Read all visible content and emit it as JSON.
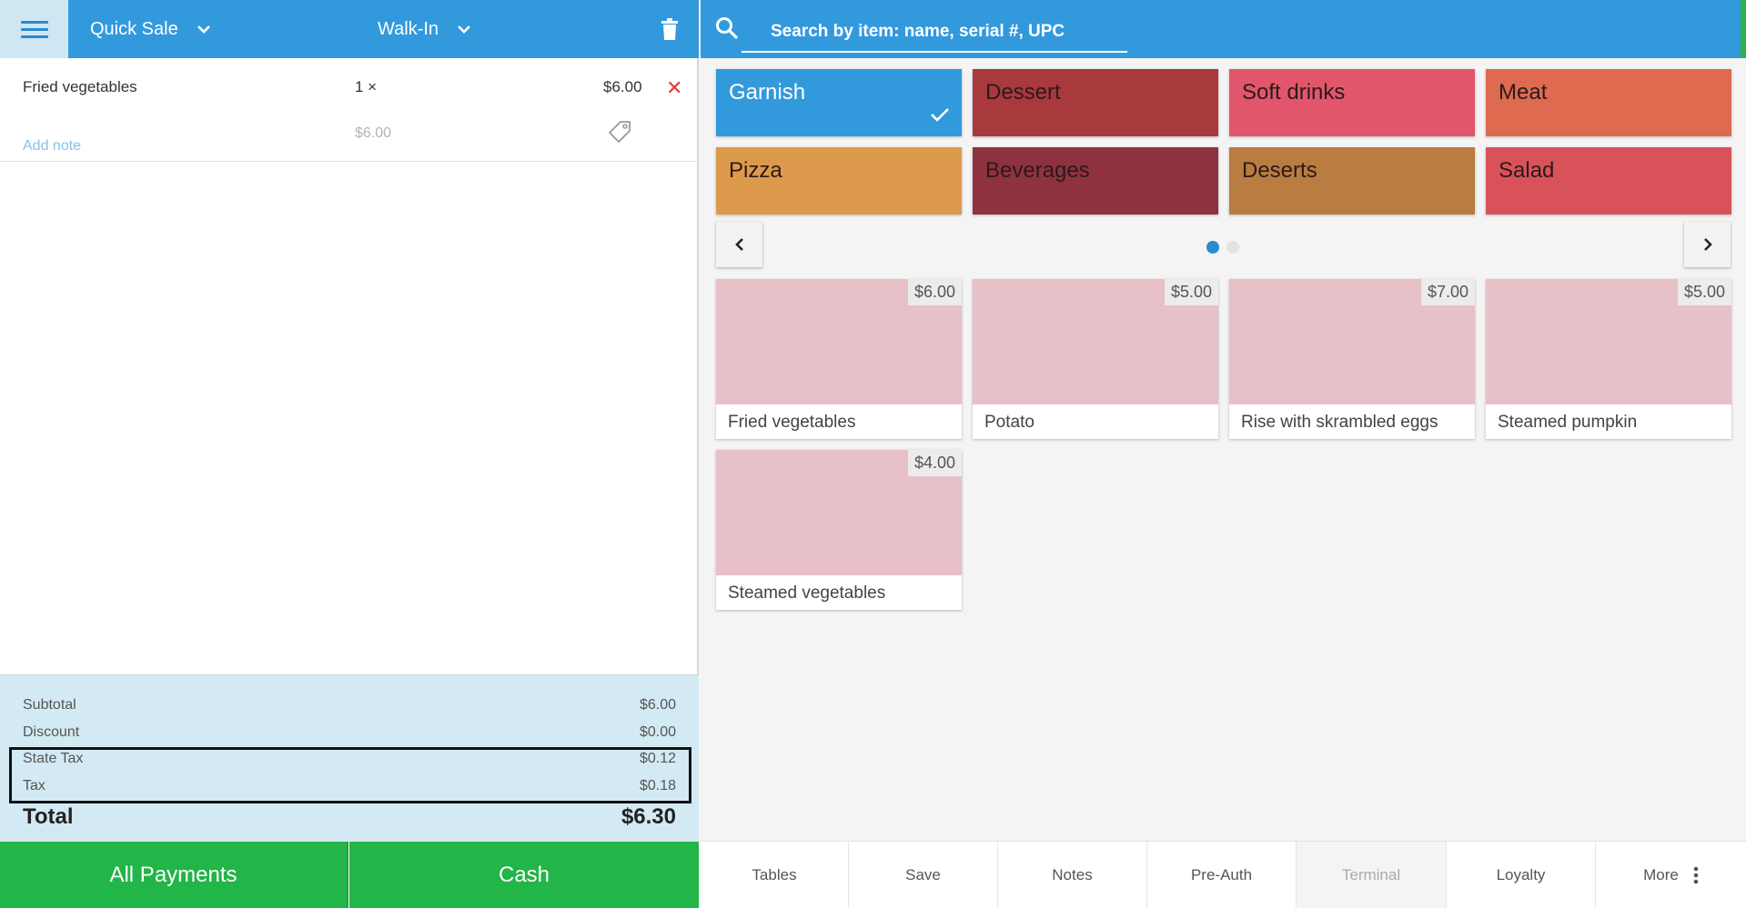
{
  "header": {
    "sale_type": "Quick Sale",
    "customer": "Walk-In"
  },
  "order": {
    "items": [
      {
        "name": "Fried vegetables",
        "qty": "1 ×",
        "price": "$6.00",
        "unit_price": "$6.00",
        "add_note": "Add note"
      }
    ]
  },
  "totals": {
    "subtotal_label": "Subtotal",
    "subtotal": "$6.00",
    "discount_label": "Discount",
    "discount": "$0.00",
    "state_tax_label": "State Tax",
    "state_tax": "$0.12",
    "tax_label": "Tax",
    "tax": "$0.18",
    "total_label": "Total",
    "total": "$6.30"
  },
  "payments": {
    "all": "All Payments",
    "cash": "Cash"
  },
  "search": {
    "placeholder": "Search by item: name, serial #, UPC"
  },
  "categories": [
    {
      "label": "Garnish",
      "color": "#3399dd",
      "selected": true
    },
    {
      "label": "Dessert",
      "color": "#a8393c"
    },
    {
      "label": "Soft drinks",
      "color": "#e2566c"
    },
    {
      "label": "Meat",
      "color": "#de6a4f"
    },
    {
      "label": "Pizza",
      "color": "#dd9a4c"
    },
    {
      "label": "Beverages",
      "color": "#8e3240"
    },
    {
      "label": "Deserts",
      "color": "#b97c41"
    },
    {
      "label": "Salad",
      "color": "#d9525a"
    }
  ],
  "products": [
    {
      "name": "Fried vegetables",
      "price": "$6.00"
    },
    {
      "name": "Potato",
      "price": "$5.00"
    },
    {
      "name": "Rise with skrambled eggs",
      "price": "$7.00"
    },
    {
      "name": "Steamed pumpkin",
      "price": "$5.00"
    },
    {
      "name": "Steamed vegetables",
      "price": "$4.00"
    }
  ],
  "pager": {
    "current": 1,
    "total": 2
  },
  "bottom_bar": {
    "tables": "Tables",
    "save": "Save",
    "notes": "Notes",
    "preauth": "Pre-Auth",
    "terminal": "Terminal",
    "loyalty": "Loyalty",
    "more": "More"
  },
  "colors": {
    "header_blue": "#3399dd",
    "pay_green": "#22b548",
    "totals_bg": "#d3eaf4",
    "product_img": "#e8c0c7"
  }
}
